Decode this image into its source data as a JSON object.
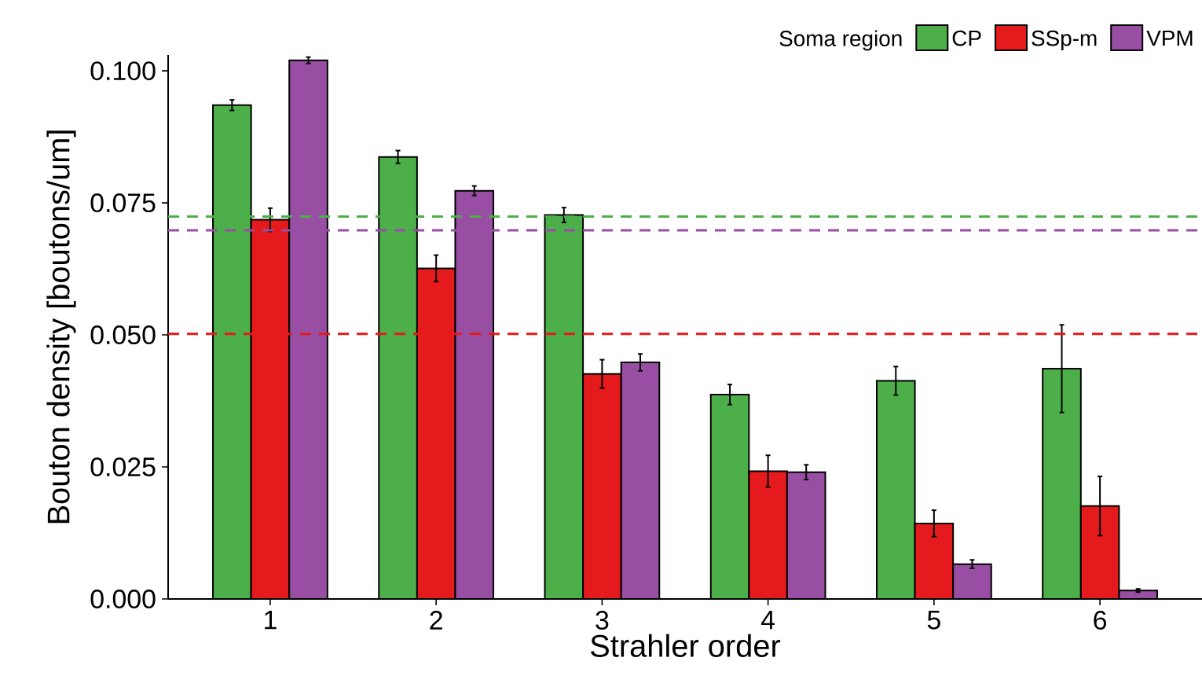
{
  "chart_data": {
    "type": "bar",
    "xlabel": "Strahler order",
    "ylabel": "Bouton density [boutons/um]",
    "legend_title": "Soma region",
    "categories": [
      "1",
      "2",
      "3",
      "4",
      "5",
      "6"
    ],
    "series": [
      {
        "name": "CP",
        "color": "#4daf4a",
        "values": [
          0.0935,
          0.0837,
          0.0727,
          0.0387,
          0.0413,
          0.0436
        ],
        "errors": [
          0.001,
          0.0012,
          0.0014,
          0.0019,
          0.0027,
          0.0083
        ]
      },
      {
        "name": "SSp-m",
        "color": "#e41a1c",
        "values": [
          0.0718,
          0.0626,
          0.0426,
          0.0242,
          0.0143,
          0.0176
        ],
        "errors": [
          0.0022,
          0.0025,
          0.0027,
          0.003,
          0.0025,
          0.0056
        ]
      },
      {
        "name": "VPM",
        "color": "#984ea3",
        "values": [
          0.102,
          0.0773,
          0.0448,
          0.024,
          0.0066,
          0.0016
        ],
        "errors": [
          0.0006,
          0.0009,
          0.0016,
          0.0014,
          0.0008,
          0.0003
        ]
      }
    ],
    "ylim": [
      0,
      0.103
    ],
    "yticks": [
      {
        "value": 0,
        "label": "0.000"
      },
      {
        "value": 0.025,
        "label": "0.025"
      },
      {
        "value": 0.05,
        "label": "0.050"
      },
      {
        "value": 0.075,
        "label": "0.075"
      },
      {
        "value": 0.1,
        "label": "0.100"
      }
    ],
    "ref_lines": [
      {
        "axis": "y",
        "value": 0.0724,
        "color": "#4daf4a",
        "line_style": "dashed"
      },
      {
        "axis": "y",
        "value": 0.0698,
        "color": "#984ea3",
        "line_style": "dashed"
      },
      {
        "axis": "y",
        "value": 0.0502,
        "color": "#e41a1c",
        "line_style": "dashed"
      }
    ],
    "legend": "top right"
  }
}
